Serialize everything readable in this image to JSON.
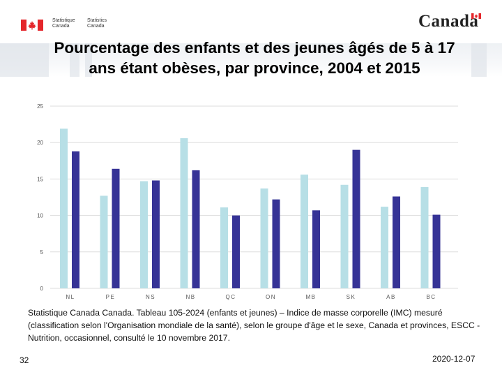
{
  "header": {
    "sc_fr_1": "Statistique",
    "sc_fr_2": "Canada",
    "sc_en_1": "Statistics",
    "sc_en_2": "Canada",
    "wordmark": "Canada"
  },
  "colors": {
    "series_2004": "#b7dfe6",
    "series_2015": "#363396",
    "grid": "#dddddd",
    "flag_red": "#e4262b"
  },
  "chart_data": {
    "type": "bar",
    "title": "Pourcentage des enfants et des jeunes âgés de 5 à 17 ans étant obèses, par province, 2004 et 2015",
    "xlabel": "",
    "ylabel": "",
    "categories": [
      "NL",
      "PE",
      "NS",
      "NB",
      "QC",
      "ON",
      "MB",
      "SK",
      "AB",
      "BC"
    ],
    "series": [
      {
        "values": [
          21.9,
          12.7,
          14.7,
          20.6,
          11.1,
          13.7,
          15.6,
          14.2,
          11.2,
          13.9
        ]
      },
      {
        "values": [
          18.8,
          16.4,
          14.8,
          16.2,
          10.0,
          12.2,
          10.7,
          19.0,
          12.6,
          10.1
        ]
      }
    ],
    "yticks": [
      0,
      5,
      10,
      15,
      20,
      25
    ],
    "ylim": [
      0,
      25
    ],
    "grid": true,
    "legend": "none"
  },
  "footer": {
    "source": "Statistique Canada Canada. Tableau 105-2024 (enfants et jeunes) – Indice de masse corporelle (IMC) mesuré (classification selon l'Organisation mondiale de la santé), selon le groupe d'âge et le sexe, Canada et provinces, ESCC - Nutrition, occasionnel, consulté le 10 novembre 2017.",
    "page_number": "32",
    "date": "2020-12-07"
  }
}
